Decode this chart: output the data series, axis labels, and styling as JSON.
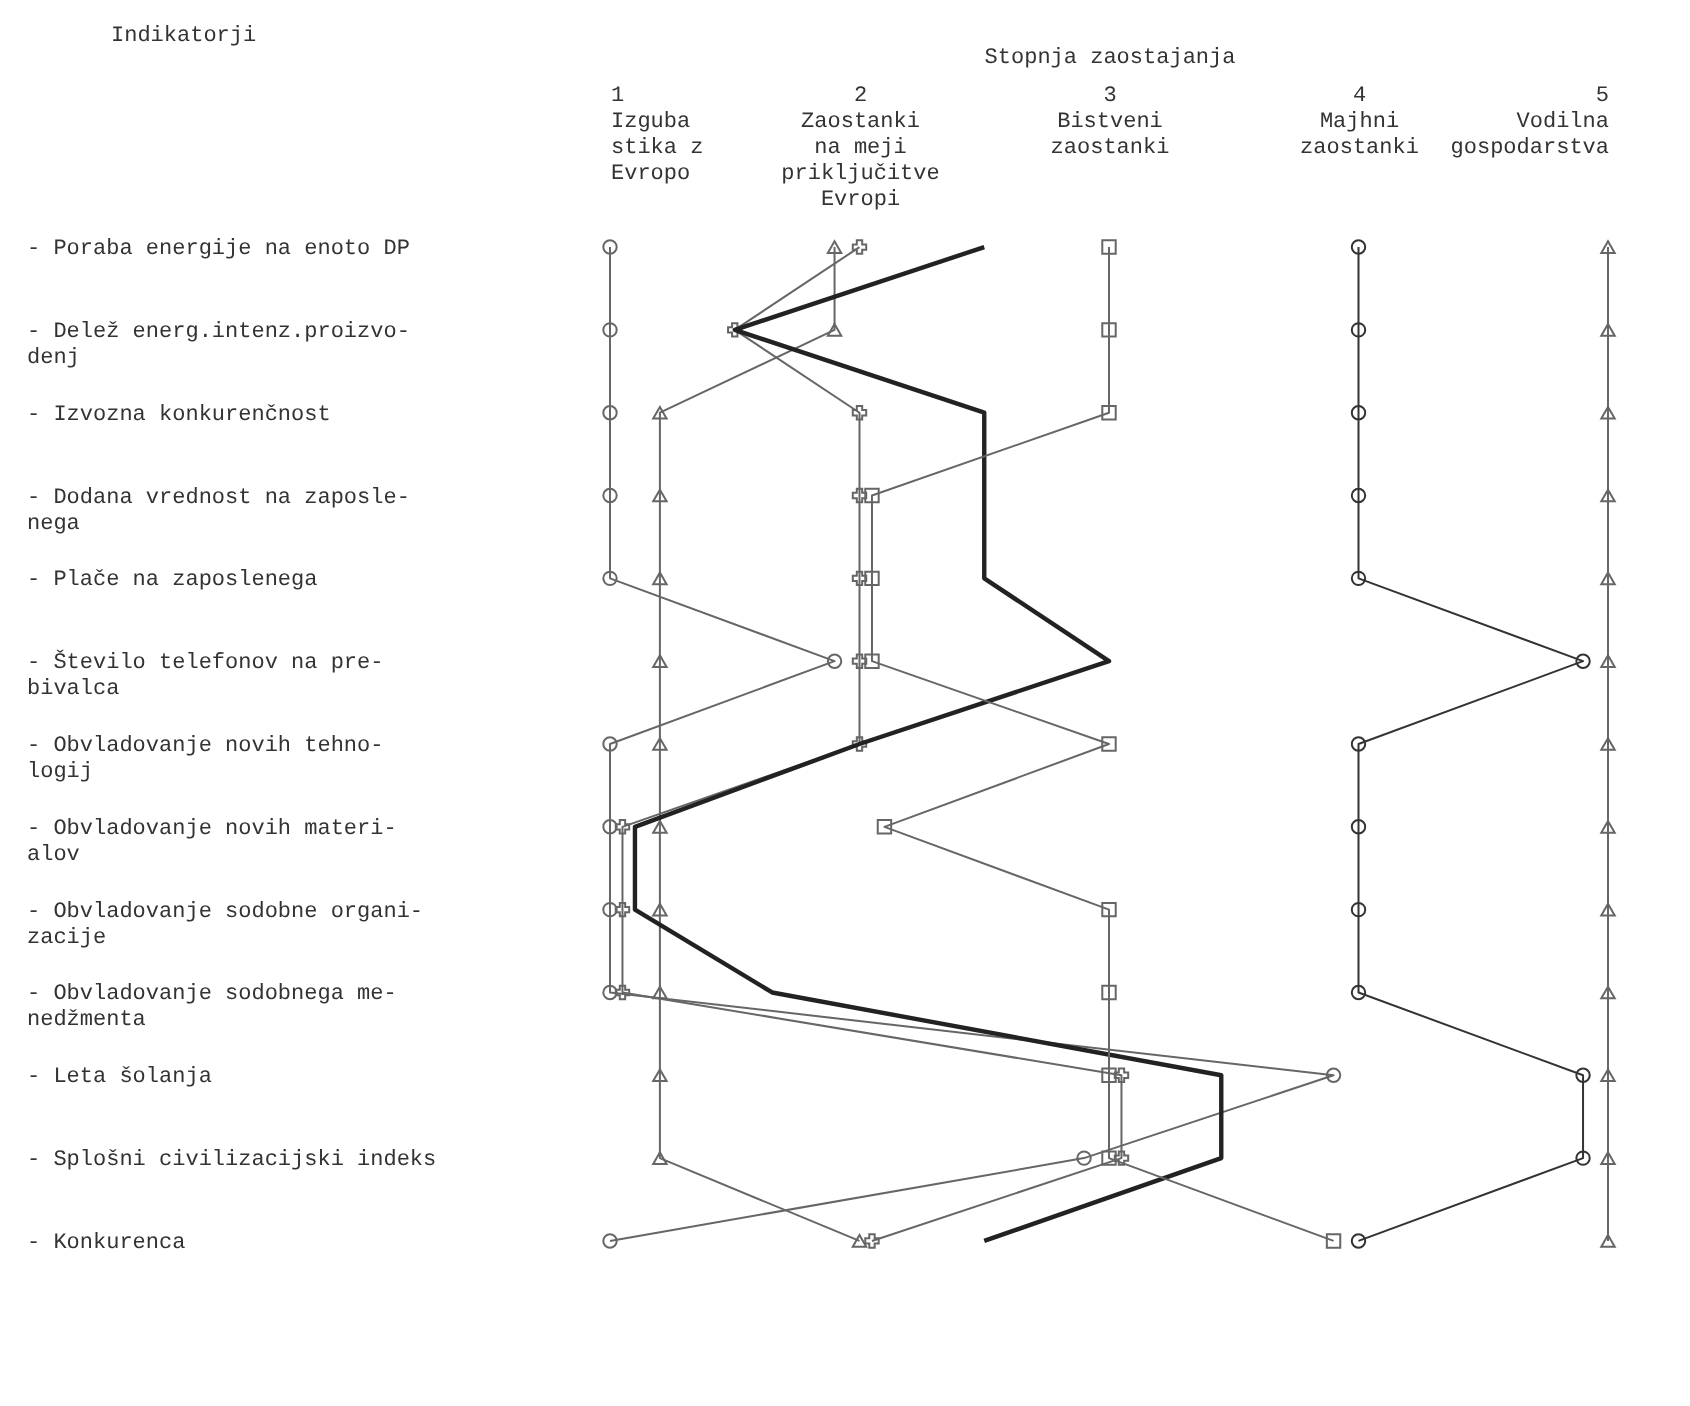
{
  "chart_data": {
    "type": "line",
    "orientation": "horizontal",
    "xlabel": "Stopnja zaostajanja",
    "ylabel": "Indikatorji",
    "categories": [
      "- Poraba energije na enoto DP",
      "- Delež energ.intenz.proizvo-\ndenj",
      "- Izvozna konkurenčnost",
      "- Dodana vrednost na zaposle-\nnega",
      "- Plače na zaposlenega",
      "- Število telefonov na pre-\nbivalca",
      "- Obvladovanje novih tehno-\nlogij",
      "- Obvladovanje novih materi-\nalov",
      "- Obvladovanje sodobne organi-\nzacije",
      "- Obvladovanje sodobnega me-\nnedžmenta",
      "- Leta šolanja",
      "- Splošni civilizacijski indeks",
      "- Konkurenca"
    ],
    "xlim": [
      1,
      5
    ],
    "xticks": [
      {
        "value": 1,
        "label": "1\nIzguba\nstika z\nEvropo"
      },
      {
        "value": 2,
        "label": "2\nZaostanki\nna meji\npriključitve\nEvropi"
      },
      {
        "value": 3,
        "label": "3\nBistveni\nzaostanki"
      },
      {
        "value": 4,
        "label": "4\nMajhni\nzaostanki"
      },
      {
        "value": 5,
        "label": "5\nVodilna\ngospodarstva"
      }
    ],
    "series": [
      {
        "color": "#666666",
        "marker": "circle",
        "values": [
          1,
          1,
          1,
          1,
          1,
          1.9,
          1,
          1,
          1,
          1,
          3.9,
          2.9,
          1
        ]
      },
      {
        "color": "#666666",
        "marker": "triangle",
        "values": [
          1.9,
          1.9,
          1.2,
          1.2,
          1.2,
          1.2,
          1.2,
          1.2,
          1.2,
          1.2,
          1.2,
          1.2,
          2.0
        ]
      },
      {
        "color": "#666666",
        "marker": "cross",
        "values": [
          2.0,
          1.5,
          2.0,
          2.0,
          2.0,
          2.0,
          2.0,
          1.05,
          1.05,
          1.05,
          3.05,
          3.05,
          2.05
        ]
      },
      {
        "color": "#222222",
        "marker": "none",
        "values": [
          2.5,
          1.5,
          2.5,
          2.5,
          2.5,
          3.0,
          2.0,
          1.1,
          1.1,
          1.65,
          3.45,
          3.45,
          2.5
        ]
      },
      {
        "color": "#666666",
        "marker": "square",
        "values": [
          3,
          3,
          3,
          2.05,
          2.05,
          2.05,
          3,
          2.1,
          3,
          3,
          3,
          3,
          3.9
        ]
      },
      {
        "color": "#333333",
        "marker": "circle",
        "values": [
          4,
          4,
          4,
          4,
          4,
          4.9,
          4,
          4,
          4,
          4,
          4.9,
          4.9,
          4
        ]
      },
      {
        "color": "#666666",
        "marker": "triangle",
        "values": [
          5,
          5,
          5,
          5,
          5,
          5,
          5,
          5,
          5,
          5,
          5,
          5,
          5
        ]
      }
    ]
  }
}
